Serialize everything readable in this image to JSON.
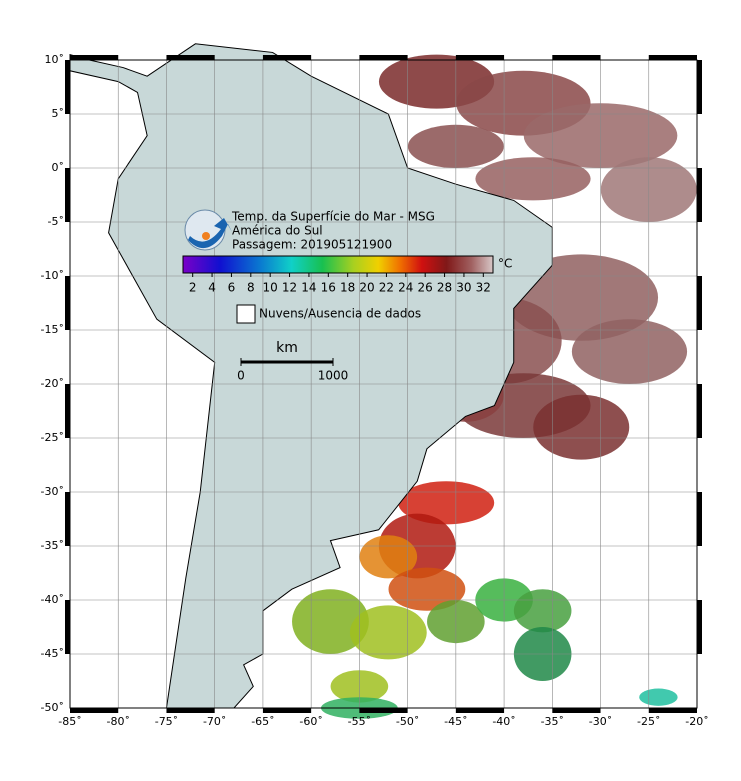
{
  "map": {
    "title": [
      "Temp. da Superfície do Mar - MSG",
      "América do Sul",
      "Passagem: 201905121900"
    ],
    "lonlim": [
      -85,
      -20
    ],
    "latlim": [
      -50,
      10
    ],
    "lon_ticks": [
      {
        "value": -85,
        "label": "-85˚"
      },
      {
        "value": -80,
        "label": "-80˚"
      },
      {
        "value": -75,
        "label": "-75˚"
      },
      {
        "value": -70,
        "label": "-70˚"
      },
      {
        "value": -65,
        "label": "-65˚"
      },
      {
        "value": -60,
        "label": "-60˚"
      },
      {
        "value": -55,
        "label": "-55˚"
      },
      {
        "value": -50,
        "label": "-50˚"
      },
      {
        "value": -45,
        "label": "-45˚"
      },
      {
        "value": -40,
        "label": "-40˚"
      },
      {
        "value": -35,
        "label": "-35˚"
      },
      {
        "value": -30,
        "label": "-30˚"
      },
      {
        "value": -25,
        "label": "-25˚"
      },
      {
        "value": -20,
        "label": "-20˚"
      }
    ],
    "lat_ticks": [
      {
        "value": 10,
        "label": "10˚"
      },
      {
        "value": 5,
        "label": "5˚"
      },
      {
        "value": 0,
        "label": "0˚"
      },
      {
        "value": -5,
        "label": "-5˚"
      },
      {
        "value": -10,
        "label": "-10˚"
      },
      {
        "value": -15,
        "label": "-15˚"
      },
      {
        "value": -20,
        "label": "-20˚"
      },
      {
        "value": -25,
        "label": "-25˚"
      },
      {
        "value": -30,
        "label": "-30˚"
      },
      {
        "value": -35,
        "label": "-35˚"
      },
      {
        "value": -40,
        "label": "-40˚"
      },
      {
        "value": -45,
        "label": "-45˚"
      },
      {
        "value": -50,
        "label": "-50˚"
      }
    ],
    "colorbar": {
      "range": [
        1,
        33
      ],
      "ticks": [
        2,
        4,
        6,
        8,
        10,
        12,
        14,
        16,
        18,
        20,
        22,
        24,
        26,
        28,
        30,
        32
      ],
      "unit": "°C"
    },
    "legend": "Nuvens/Ausencia de dados",
    "scale_bar": {
      "unit": "km",
      "ticks": [
        0,
        1000
      ]
    }
  }
}
